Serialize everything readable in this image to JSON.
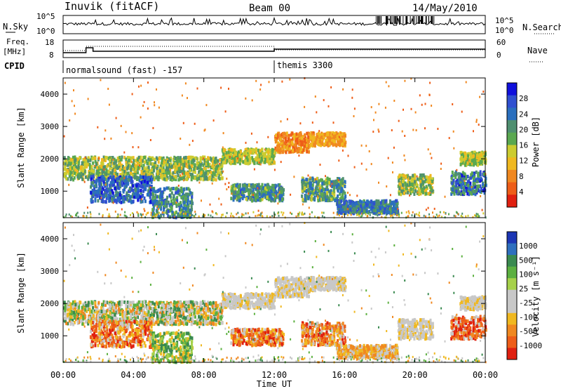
{
  "header": {
    "station": "Inuvik (fitACF)",
    "beam": "Beam 00",
    "date": "14/May/2010"
  },
  "top_panel": {
    "left_label": "N.Sky",
    "right_label": "N.Search",
    "y_tick_labels": [
      "10^5",
      "10^0"
    ],
    "right_tick_labels": [
      "10^5",
      "10^0"
    ]
  },
  "freq_panel": {
    "left_label_lines": [
      "Freq.",
      "[MHz]"
    ],
    "left_ticks": [
      "18",
      "8"
    ],
    "right_label": "Nave",
    "right_ticks": [
      "60",
      "0"
    ]
  },
  "cpid": {
    "label": "CPID",
    "segments": [
      {
        "text": "normalsound (fast) -157",
        "start_hour": 0
      },
      {
        "text": "themis 3300",
        "start_hour": 12
      }
    ]
  },
  "chart_data": [
    {
      "type": "heatmap",
      "title": "",
      "ylabel": "Slant Range [km]",
      "xlabel": "",
      "ylim": [
        180,
        4500
      ],
      "yticks": [
        1000,
        2000,
        3000,
        4000
      ],
      "xlim": [
        0,
        24
      ],
      "colorbar": {
        "label": "Power [dB]",
        "ticks": [
          "28",
          "24",
          "20",
          "16",
          "12",
          "8",
          "4"
        ],
        "colors": [
          "#1010dc",
          "#3050d0",
          "#2a6fbe",
          "#4f8f70",
          "#5aa850",
          "#cccc30",
          "#f0b820",
          "#f08820",
          "#ee5d18",
          "#e02010"
        ]
      }
    },
    {
      "type": "heatmap",
      "title": "",
      "ylabel": "Slant Range [km]",
      "xlabel": "Time UT",
      "ylim": [
        180,
        4500
      ],
      "yticks": [
        1000,
        2000,
        3000,
        4000
      ],
      "xlim": [
        0,
        24
      ],
      "xtick_labels": [
        "00:00",
        "04:00",
        "08:00",
        "12:00",
        "16:00",
        "20:00",
        "00:00"
      ],
      "colorbar": {
        "label": "Velocity [m s⁻¹]",
        "ticks": [
          "1000",
          "500",
          "100",
          "25",
          "-25",
          "-100",
          "-500",
          "-1000"
        ],
        "colors": [
          "#1c36b4",
          "#2e6fbe",
          "#3a8a50",
          "#5cb040",
          "#a6d14a",
          "#c8c8c8",
          "#c8c8c8",
          "#f0b820",
          "#f08820",
          "#ee5d18",
          "#e02010"
        ]
      }
    }
  ]
}
